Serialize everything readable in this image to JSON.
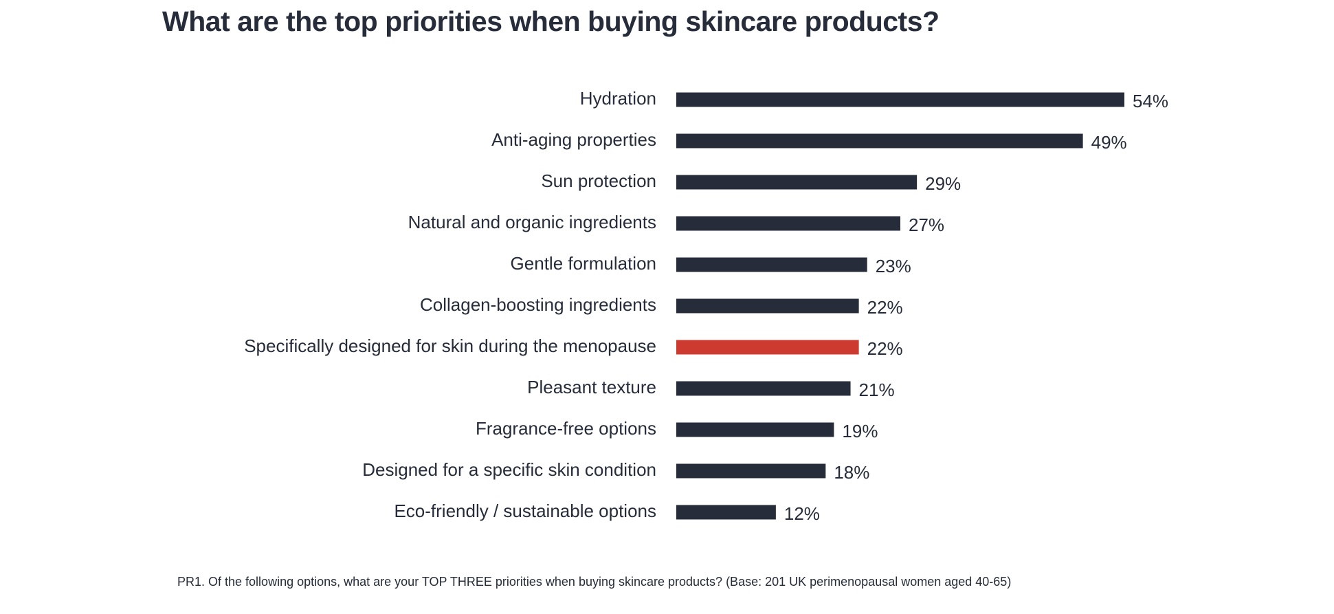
{
  "colors": {
    "bar_default": "#262c3a",
    "bar_highlight": "#cd3a2f",
    "text": "#262c3a",
    "background": "#ffffff"
  },
  "footnote": "PR1. Of the following options, what are your TOP THREE priorities when buying skincare products? (Base: 201 UK perimenopausal women aged 40-65)",
  "chart_data": {
    "type": "bar",
    "orientation": "horizontal",
    "title": "What are the top priorities when buying skincare products?",
    "xlabel": "",
    "ylabel": "",
    "xlim": [
      0,
      54
    ],
    "grid": false,
    "legend": "none",
    "value_suffix": "%",
    "highlight_index": 6,
    "categories": [
      "Hydration",
      "Anti-aging properties",
      "Sun protection",
      "Natural and organic ingredients",
      "Gentle formulation",
      "Collagen-boosting ingredients",
      "Specifically designed for skin during the menopause",
      "Pleasant texture",
      "Fragrance-free options",
      "Designed for a specific skin condition",
      "Eco-friendly / sustainable options"
    ],
    "values": [
      54,
      49,
      29,
      27,
      23,
      22,
      22,
      21,
      19,
      18,
      12
    ]
  }
}
